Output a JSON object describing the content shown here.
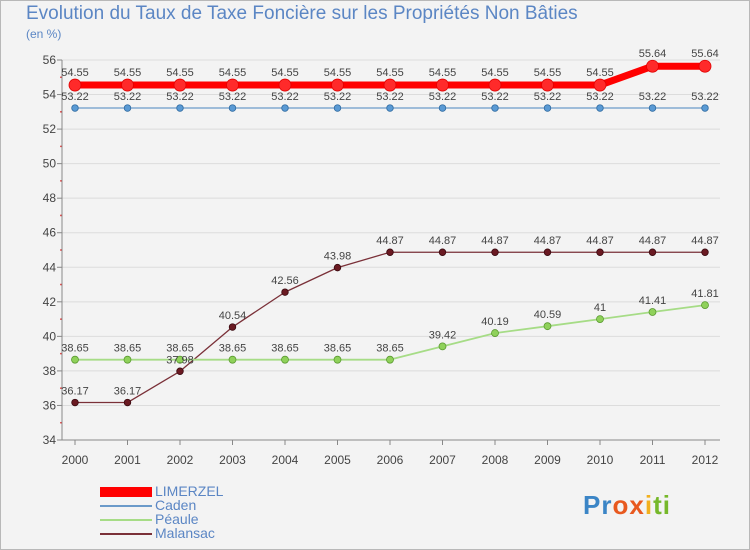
{
  "title": "Evolution du Taux de Taxe Foncière sur les Propriétés Non Bâties",
  "unit_label": "(en %)",
  "logo_text": "Proxiti",
  "colors": {
    "title": "#5b86c4",
    "limerzel": "#ff0000",
    "caden": "#6b9ac9",
    "peaule": "#a6dc86",
    "malansac": "#7a3038"
  },
  "chart_data": {
    "type": "line",
    "title": "Evolution du Taux de Taxe Foncière sur les Propriétés Non Bâties",
    "xlabel": "",
    "ylabel": "(en %)",
    "ylim": [
      34,
      56
    ],
    "y_ticks": [
      34,
      36,
      38,
      40,
      42,
      44,
      46,
      48,
      50,
      52,
      54,
      56
    ],
    "categories": [
      "2000",
      "2001",
      "2002",
      "2003",
      "2004",
      "2005",
      "2006",
      "2007",
      "2008",
      "2009",
      "2010",
      "2011",
      "2012"
    ],
    "series": [
      {
        "name": "LIMERZEL",
        "key": "limerzel",
        "values": [
          54.55,
          54.55,
          54.55,
          54.55,
          54.55,
          54.55,
          54.55,
          54.55,
          54.55,
          54.55,
          54.55,
          55.64,
          55.64
        ]
      },
      {
        "name": "Caden",
        "key": "caden",
        "values": [
          53.22,
          53.22,
          53.22,
          53.22,
          53.22,
          53.22,
          53.22,
          53.22,
          53.22,
          53.22,
          53.22,
          53.22,
          53.22
        ]
      },
      {
        "name": "Péaule",
        "key": "peaule",
        "values": [
          38.65,
          38.65,
          38.65,
          38.65,
          38.65,
          38.65,
          38.65,
          39.42,
          40.19,
          40.59,
          41,
          41.41,
          41.81
        ]
      },
      {
        "name": "Malansac",
        "key": "malansac",
        "values": [
          36.17,
          36.17,
          37.98,
          40.54,
          42.56,
          43.98,
          44.87,
          44.87,
          44.87,
          44.87,
          44.87,
          44.87,
          44.87
        ]
      }
    ],
    "legend_position": "bottom-left"
  }
}
